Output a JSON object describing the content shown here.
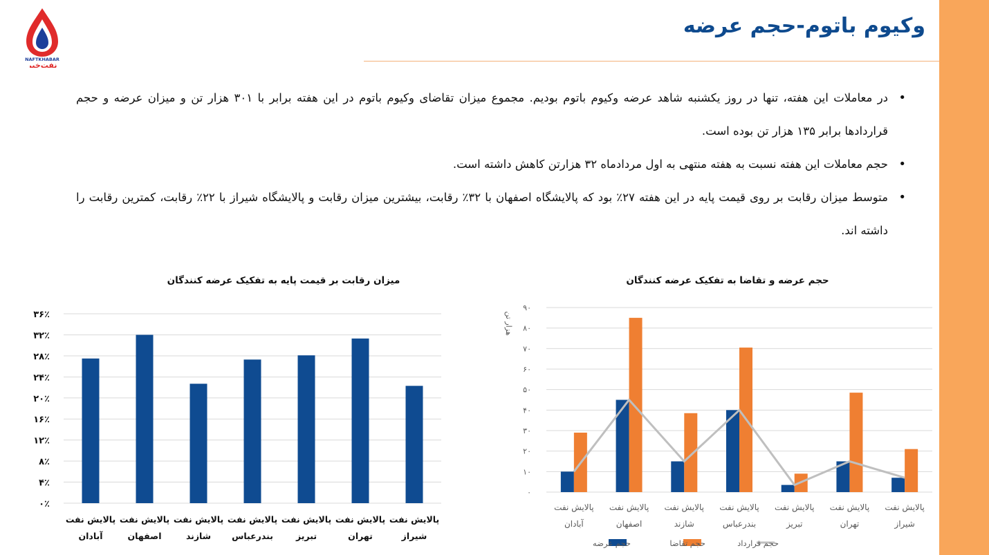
{
  "header": {
    "logo_text_latin": "NAFTKHABAR",
    "logo_text_fa": "نفت‌خبر",
    "title": "وکیوم باتوم-حجم عرضه"
  },
  "bullets": [
    "در معاملات این هفته، تنها در روز یکشنبه شاهد عرضه وکیوم باتوم بودیم. مجموع میزان تقاضای وکیوم باتوم در این هفته برابر با ۳۰۱ هزار تن و میزان عرضه و حجم قراردادها برابر ۱۳۵ هزار تن بوده است.",
    "حجم معاملات این هفته نسبت به هفته منتهی به اول مردادماه ۳۲ هزارتن کاهش داشته است.",
    "متوسط میزان رقابت بر روی قیمت پایه در این هفته ۲۷٪ بود که پالایشگاه اصفهان با ۳۲٪ رقابت، بیشترین میزان رقابت و پالایشگاه شیراز با ۲۲٪ رقابت، کمترین رقابت را داشته اند."
  ],
  "colors": {
    "accent_bar": "#f9a65a",
    "title_blue": "#0e4a8e",
    "bar_blue": "#0f4b91",
    "bar_orange": "#ef7f32",
    "line_gray": "#bfbfbf",
    "grid": "#d9d9d9"
  },
  "chart_data": [
    {
      "type": "bar",
      "title": "میزان رقابت بر قیمت پایه به تفکیک عرضه کنندگان",
      "categories": [
        [
          "پالایش نفت",
          "آبادان"
        ],
        [
          "پالایش نفت",
          "اصفهان"
        ],
        [
          "پالایش نفت",
          "شازند"
        ],
        [
          "پالایش نفت",
          "بندرعباس"
        ],
        [
          "پالایش نفت",
          "تبریز"
        ],
        [
          "پالایش نفت",
          "تهران"
        ],
        [
          "پالایش نفت",
          "شیراز"
        ]
      ],
      "series": [
        {
          "values": [
            27.5,
            32,
            22.7,
            27.3,
            28.1,
            31.3,
            22.3
          ]
        }
      ],
      "ylim": [
        0,
        36
      ],
      "yticks": [
        0,
        4,
        8,
        12,
        16,
        20,
        24,
        28,
        32,
        36
      ],
      "ytick_labels": [
        "۰٪",
        "۴٪",
        "۸٪",
        "۱۲٪",
        "۱۶٪",
        "۲۰٪",
        "۲۴٪",
        "۲۸٪",
        "۳۲٪",
        "۳۶٪"
      ],
      "grid": true,
      "legend": "none"
    },
    {
      "type": "bar",
      "title": "حجم عرضه و تقاضا به تفکیک عرضه کنندگان",
      "ylabel": "هزار تن",
      "categories": [
        [
          "پالایش نفت",
          "آبادان"
        ],
        [
          "پالایش نفت",
          "اصفهان"
        ],
        [
          "پالایش نفت",
          "شازند"
        ],
        [
          "پالایش نفت",
          "بندرعباس"
        ],
        [
          "پالایش نفت",
          "تبریز"
        ],
        [
          "پالایش نفت",
          "تهران"
        ],
        [
          "پالایش نفت",
          "شیراز"
        ]
      ],
      "series": [
        {
          "name": "حجم عرضه",
          "kind": "bar",
          "values": [
            10,
            45,
            15,
            40,
            3.5,
            15,
            7
          ]
        },
        {
          "name": "حجم تقاضا",
          "kind": "bar",
          "values": [
            29,
            85,
            38.5,
            70.5,
            9,
            48.5,
            21
          ]
        },
        {
          "name": "حجم قرارداد",
          "kind": "line",
          "values": [
            10,
            45,
            15,
            40,
            3.5,
            15,
            7
          ]
        }
      ],
      "ylim": [
        0,
        90
      ],
      "yticks": [
        0,
        10,
        20,
        30,
        40,
        50,
        60,
        70,
        80,
        90
      ],
      "ytick_labels": [
        "۰",
        "۱۰",
        "۲۰",
        "۳۰",
        "۴۰",
        "۵۰",
        "۶۰",
        "۷۰",
        "۸۰",
        "۹۰"
      ],
      "grid": true,
      "legend": "bottom"
    }
  ]
}
